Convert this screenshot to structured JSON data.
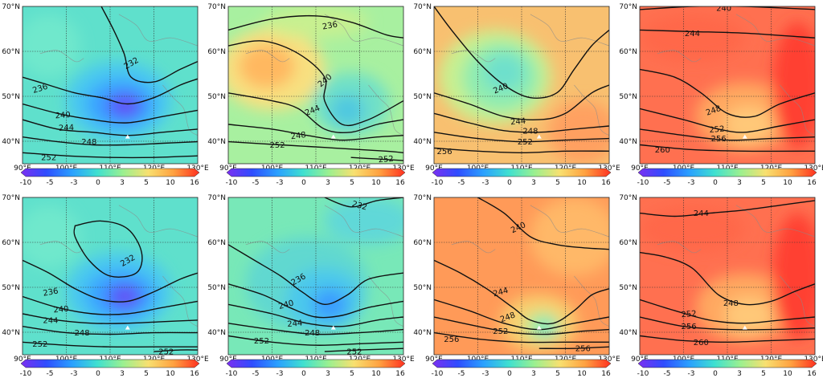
{
  "figure": {
    "description_hidden": false,
    "lat_labels": [
      "70°N",
      "60°N",
      "50°N",
      "40°N"
    ],
    "lon_labels": [
      "90°E",
      "100°E",
      "110°E",
      "120°E",
      "130°E"
    ],
    "colorbar_ticks": [
      "-10",
      "-5",
      "-3",
      "0",
      "3",
      "5",
      "10",
      "16"
    ],
    "colorbar_colors": [
      "#7b2ff0",
      "#2f4dff",
      "#2aa0ff",
      "#3fe0d0",
      "#9af090",
      "#f8e070",
      "#ffa040",
      "#ff3020"
    ],
    "panels": [
      {
        "id": "row1-col1",
        "theme": "blue",
        "contours": [
          {
            "label": "232"
          },
          {
            "label": "236"
          },
          {
            "label": "240"
          },
          {
            "label": "244"
          },
          {
            "label": "248"
          },
          {
            "label": "252"
          }
        ]
      },
      {
        "id": "row1-col2",
        "theme": "green-orange",
        "contours": [
          {
            "label": "236"
          },
          {
            "label": "240"
          },
          {
            "label": "244"
          },
          {
            "label": "248"
          },
          {
            "label": "252"
          },
          {
            "label": "252"
          }
        ]
      },
      {
        "id": "row1-col3",
        "theme": "orange-green",
        "contours": [
          {
            "label": "240"
          },
          {
            "label": "244"
          },
          {
            "label": "248"
          },
          {
            "label": "252"
          },
          {
            "label": "256"
          }
        ]
      },
      {
        "id": "row1-col4",
        "theme": "red",
        "contours": [
          {
            "label": "240"
          },
          {
            "label": "244"
          },
          {
            "label": "248"
          },
          {
            "label": "252"
          },
          {
            "label": "256"
          },
          {
            "label": "260"
          }
        ]
      },
      {
        "id": "row2-col1",
        "theme": "blue",
        "contours": [
          {
            "label": "232"
          },
          {
            "label": "236"
          },
          {
            "label": "240"
          },
          {
            "label": "244"
          },
          {
            "label": "248"
          },
          {
            "label": "252"
          },
          {
            "label": "252"
          }
        ]
      },
      {
        "id": "row2-col2",
        "theme": "blue-green",
        "contours": [
          {
            "label": "232"
          },
          {
            "label": "236"
          },
          {
            "label": "240"
          },
          {
            "label": "244"
          },
          {
            "label": "248"
          },
          {
            "label": "252"
          },
          {
            "label": "252"
          }
        ]
      },
      {
        "id": "row2-col3",
        "theme": "orange",
        "contours": [
          {
            "label": "240"
          },
          {
            "label": "244"
          },
          {
            "label": "248"
          },
          {
            "label": "252"
          },
          {
            "label": "256"
          },
          {
            "label": "256"
          }
        ]
      },
      {
        "id": "row2-col4",
        "theme": "red",
        "contours": [
          {
            "label": "244"
          },
          {
            "label": "248"
          },
          {
            "label": "252"
          },
          {
            "label": "256"
          },
          {
            "label": "260"
          }
        ]
      }
    ]
  }
}
